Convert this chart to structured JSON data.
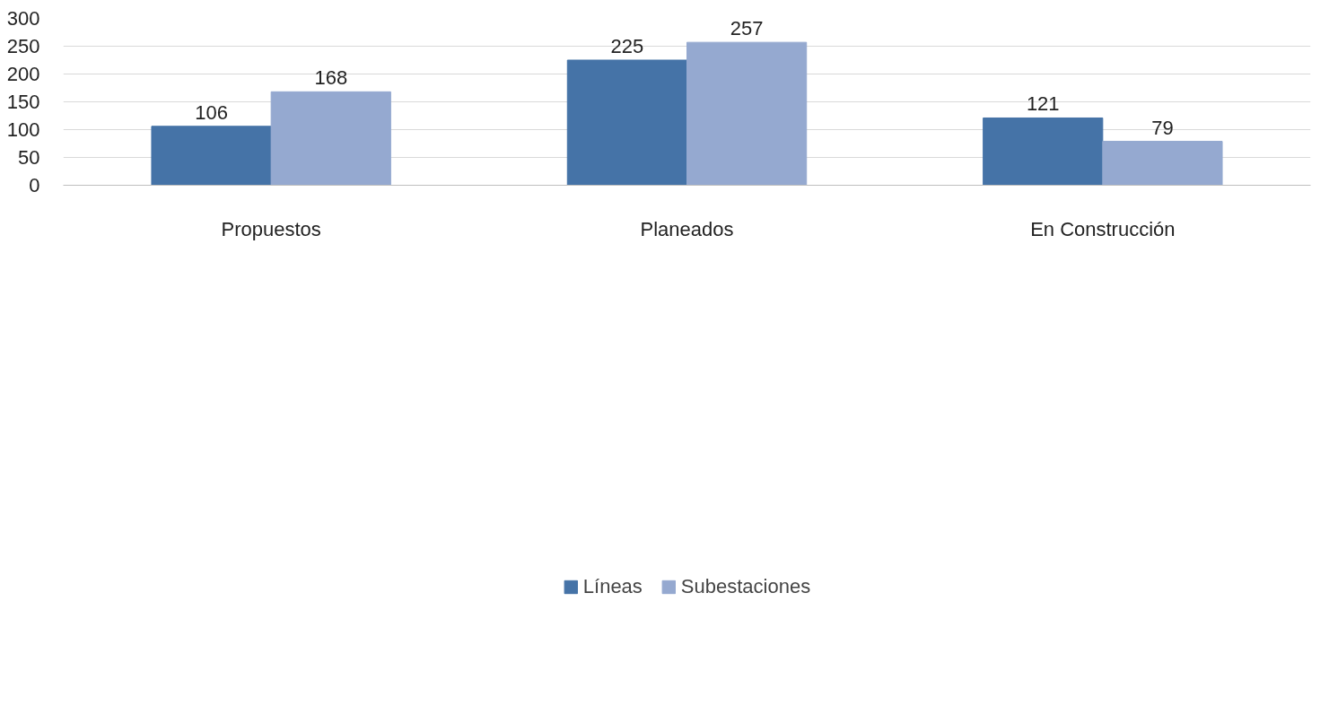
{
  "chart_data": {
    "type": "bar",
    "categories": [
      "Propuestos",
      "Planeados",
      "En Construcción"
    ],
    "series": [
      {
        "name": "Líneas",
        "color": "#4573a7",
        "values": [
          106,
          225,
          121
        ]
      },
      {
        "name": "Subestaciones",
        "color": "#95a9d0",
        "values": [
          168,
          257,
          79
        ]
      }
    ],
    "ylim": [
      0,
      300
    ],
    "yticks": [
      0,
      50,
      100,
      150,
      200,
      250,
      300
    ],
    "grid": "y",
    "legend": "bottom",
    "data_labels": true
  }
}
